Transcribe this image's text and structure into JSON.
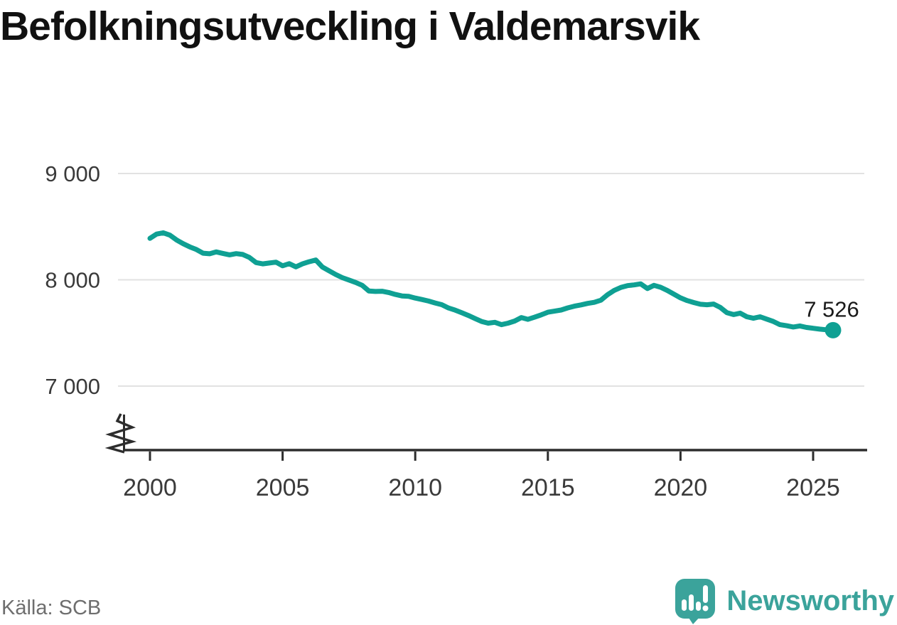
{
  "chart_data": {
    "type": "line",
    "title": "Befolkningsutveckling i Valdemarsvik",
    "x_start": 2000.0,
    "x_step": 0.25,
    "x_end": 2025.75,
    "values": [
      8390,
      8430,
      8442,
      8420,
      8375,
      8340,
      8310,
      8285,
      8250,
      8245,
      8262,
      8248,
      8235,
      8246,
      8238,
      8210,
      8162,
      8150,
      8158,
      8166,
      8132,
      8152,
      8122,
      8150,
      8170,
      8186,
      8120,
      8085,
      8050,
      8020,
      7998,
      7975,
      7948,
      7895,
      7890,
      7892,
      7880,
      7862,
      7848,
      7845,
      7828,
      7815,
      7800,
      7782,
      7766,
      7735,
      7715,
      7690,
      7665,
      7636,
      7608,
      7592,
      7600,
      7578,
      7592,
      7612,
      7645,
      7628,
      7648,
      7670,
      7695,
      7705,
      7716,
      7736,
      7752,
      7764,
      7778,
      7788,
      7808,
      7860,
      7900,
      7928,
      7945,
      7952,
      7962,
      7918,
      7948,
      7930,
      7900,
      7865,
      7830,
      7805,
      7786,
      7770,
      7765,
      7772,
      7740,
      7690,
      7673,
      7686,
      7652,
      7638,
      7652,
      7630,
      7608,
      7578,
      7568,
      7556,
      7566,
      7552,
      7544,
      7536,
      7530,
      7526
    ],
    "x_ticks": [
      {
        "value": 2000,
        "label": "2000"
      },
      {
        "value": 2005,
        "label": "2005"
      },
      {
        "value": 2010,
        "label": "2010"
      },
      {
        "value": 2015,
        "label": "2015"
      },
      {
        "value": 2020,
        "label": "2020"
      },
      {
        "value": 2025,
        "label": "2025"
      }
    ],
    "y_ticks": [
      {
        "value": 9000,
        "label": "9 000"
      },
      {
        "value": 8000,
        "label": "8 000"
      },
      {
        "value": 7000,
        "label": "7 000"
      }
    ],
    "ylim_shown": [
      7000,
      9000
    ],
    "y_axis_break": true,
    "grid": true,
    "legend": "none",
    "last_value": 7526,
    "last_value_label": "7 526",
    "xlabel": "",
    "ylabel": "",
    "line_color": "#0FA093",
    "grid_color": "#E2E2E2",
    "axis_color": "#2D2D2D",
    "tick_text_color": "#3A3A3A",
    "label_text_color": "#1A1A1A"
  },
  "footer": {
    "source": "Källa: SCB",
    "brand": "Newsworthy",
    "brand_color": "#3BA39B"
  }
}
